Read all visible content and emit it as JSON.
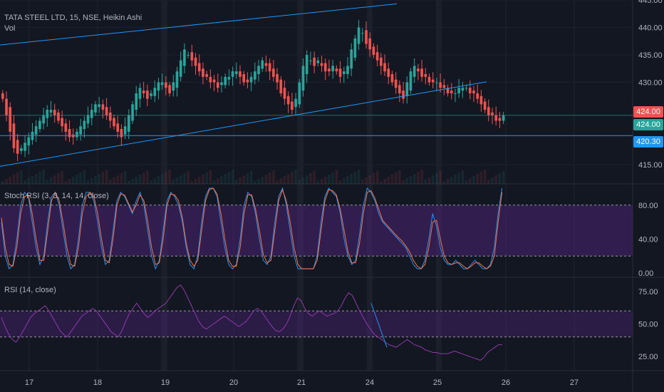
{
  "header": {
    "symbol_line": "TATA STEEL LTD, 15, NSE, Heikin Ashi",
    "vol_label": "Vol"
  },
  "stoch_title": "Stoch RSI (3, 3, 14, 14, close)",
  "rsi_title": "RSI (14, close)",
  "price_tags": [
    {
      "text": "424.00",
      "color": "#ef5350"
    },
    {
      "text": "424.00",
      "color": "#26a69a"
    },
    {
      "text": "420.30",
      "color": "#2196f3"
    }
  ],
  "colors": {
    "background": "#131722",
    "up": "#26a69a",
    "down": "#ef5350",
    "trend": "#2196f3",
    "band": "#4a2373",
    "k_line": "#2196f3",
    "d_line": "#ff7043",
    "rsi_line": "#8e3aa8"
  },
  "chart_data": [
    {
      "type": "candlestick",
      "style": "Heikin Ashi",
      "y_ticks": [
        445,
        440,
        435,
        430,
        415
      ],
      "ylim": [
        411.5,
        445
      ],
      "x_ticks": [
        "17",
        "18",
        "19",
        "20",
        "21",
        "24",
        "25",
        "26",
        "27"
      ],
      "horizontal_lines": [
        424.0,
        420.3
      ],
      "series": [
        {
          "name": "price_close_approx",
          "values": [
            427,
            424,
            421,
            418,
            417,
            418,
            419,
            420,
            421,
            422,
            423,
            424,
            425,
            425,
            424,
            423,
            422,
            421,
            420,
            420,
            421,
            422,
            423,
            424,
            425,
            426,
            426,
            425,
            424,
            423,
            422,
            421,
            420,
            422,
            424,
            426,
            428,
            429,
            428,
            427,
            428,
            429,
            430,
            430,
            429,
            428,
            430,
            432,
            434,
            436,
            435,
            434,
            433,
            432,
            431,
            431,
            430,
            430,
            429,
            430,
            431,
            431,
            432,
            432,
            431,
            430,
            430,
            431,
            432,
            433,
            434,
            433,
            432,
            431,
            430,
            428,
            427,
            426,
            425,
            427,
            430,
            433,
            435,
            434,
            433,
            434,
            433,
            432,
            432,
            433,
            432,
            431,
            432,
            433,
            436,
            438,
            440,
            439,
            437,
            436,
            435,
            434,
            433,
            432,
            431,
            430,
            429,
            428,
            427,
            430,
            432,
            433,
            432,
            431,
            431,
            430,
            430,
            430,
            429,
            429,
            428,
            428,
            428,
            429,
            429,
            429,
            428,
            428,
            427,
            426,
            425,
            424,
            424,
            423,
            423,
            424
          ]
        }
      ]
    },
    {
      "type": "line",
      "title": "Stoch RSI (3, 3, 14, 14, close)",
      "y_ticks": [
        80.0,
        40.0,
        0.0
      ],
      "ylim": [
        -5,
        105
      ],
      "band": [
        20,
        80
      ],
      "series": [
        {
          "name": "K",
          "values": [
            60,
            20,
            5,
            10,
            40,
            80,
            95,
            90,
            60,
            30,
            10,
            20,
            60,
            90,
            95,
            80,
            50,
            20,
            5,
            10,
            40,
            80,
            95,
            95,
            85,
            60,
            30,
            10,
            15,
            50,
            85,
            95,
            90,
            80,
            70,
            85,
            95,
            80,
            50,
            20,
            5,
            15,
            50,
            85,
            95,
            90,
            80,
            60,
            30,
            10,
            5,
            20,
            60,
            90,
            100,
            100,
            90,
            60,
            30,
            10,
            5,
            10,
            40,
            80,
            95,
            90,
            70,
            40,
            15,
            10,
            20,
            60,
            90,
            100,
            80,
            50,
            20,
            5,
            5,
            5,
            5,
            5,
            20,
            60,
            90,
            100,
            95,
            90,
            70,
            40,
            20,
            10,
            15,
            45,
            80,
            100,
            95,
            85,
            70,
            60,
            55,
            50,
            45,
            40,
            35,
            30,
            20,
            10,
            5,
            5,
            15,
            40,
            70,
            55,
            30,
            15,
            10,
            10,
            15,
            10,
            5,
            5,
            10,
            15,
            10,
            5,
            5,
            10,
            30,
            70,
            100
          ]
        },
        {
          "name": "D",
          "values": [
            65,
            30,
            10,
            8,
            30,
            70,
            90,
            92,
            70,
            40,
            15,
            15,
            50,
            85,
            95,
            85,
            60,
            30,
            10,
            8,
            30,
            70,
            90,
            95,
            90,
            70,
            40,
            15,
            12,
            40,
            80,
            93,
            92,
            82,
            72,
            80,
            92,
            85,
            60,
            30,
            10,
            12,
            40,
            80,
            93,
            92,
            85,
            65,
            35,
            15,
            8,
            15,
            50,
            85,
            98,
            100,
            93,
            70,
            40,
            15,
            8,
            8,
            30,
            70,
            92,
            92,
            75,
            50,
            22,
            12,
            15,
            50,
            85,
            98,
            85,
            60,
            30,
            10,
            5,
            5,
            5,
            5,
            15,
            50,
            85,
            98,
            97,
            92,
            75,
            50,
            25,
            12,
            12,
            35,
            70,
            95,
            97,
            88,
            75,
            62,
            57,
            52,
            47,
            42,
            38,
            32,
            25,
            15,
            8,
            5,
            10,
            30,
            60,
            62,
            40,
            20,
            12,
            10,
            12,
            12,
            8,
            5,
            8,
            12,
            12,
            8,
            5,
            8,
            20,
            60,
            95
          ]
        }
      ]
    },
    {
      "type": "line",
      "title": "RSI (14, close)",
      "y_ticks": [
        75.0,
        50.0,
        25.0
      ],
      "ylim": [
        14,
        86
      ],
      "band": [
        40,
        60
      ],
      "series": [
        {
          "name": "RSI",
          "values": [
            55,
            48,
            42,
            38,
            36,
            40,
            45,
            50,
            55,
            58,
            60,
            62,
            64,
            60,
            55,
            50,
            45,
            42,
            40,
            44,
            48,
            52,
            56,
            58,
            60,
            62,
            60,
            56,
            52,
            48,
            44,
            42,
            40,
            45,
            52,
            58,
            62,
            66,
            62,
            58,
            55,
            57,
            60,
            62,
            64,
            66,
            70,
            74,
            78,
            80,
            76,
            70,
            64,
            58,
            52,
            48,
            46,
            48,
            50,
            52,
            54,
            56,
            54,
            52,
            50,
            48,
            50,
            52,
            56,
            60,
            62,
            60,
            56,
            52,
            48,
            45,
            44,
            46,
            50,
            56,
            64,
            70,
            68,
            62,
            58,
            56,
            58,
            60,
            58,
            56,
            57,
            58,
            60,
            64,
            70,
            74,
            72,
            66,
            60,
            55,
            50,
            46,
            42,
            40,
            38,
            36,
            34,
            33,
            32,
            34,
            36,
            38,
            36,
            34,
            33,
            32,
            30,
            29,
            28,
            28,
            27,
            27,
            27,
            28,
            29,
            28,
            27,
            26,
            25,
            24,
            23,
            22,
            24,
            28,
            30,
            32,
            34,
            34
          ]
        }
      ]
    }
  ]
}
